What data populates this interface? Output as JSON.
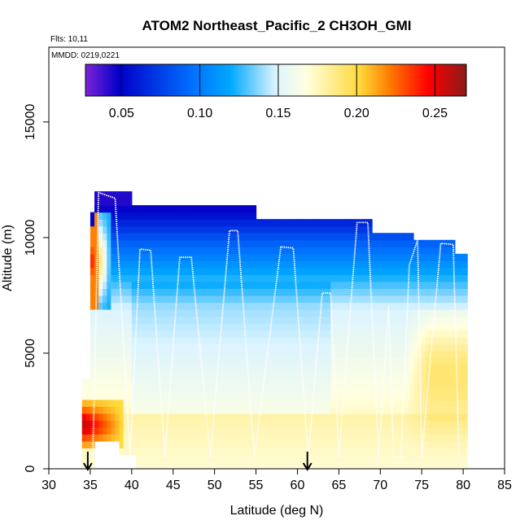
{
  "chart_data": {
    "type": "heatmap",
    "title": "ATOM2 Northeast_Pacific_2 CH3OH_GMI",
    "subtitle_flights": "Flts: 10,11",
    "subtitle_dates": "MMDD: 0219,0221",
    "xlabel": "Latitude (deg N)",
    "ylabel": "Altitude (m)",
    "xlim": [
      30,
      85
    ],
    "ylim": [
      0,
      17500
    ],
    "x_ticks": [
      30,
      35,
      40,
      45,
      50,
      55,
      60,
      65,
      70,
      75,
      80,
      85
    ],
    "y_ticks": [
      0,
      5000,
      10000,
      15000
    ],
    "colorbar": {
      "range": [
        0.027,
        0.27
      ],
      "ticks": [
        "0.05",
        "0.10",
        "0.15",
        "0.20",
        "0.25"
      ],
      "tick_values": [
        0.05,
        0.1,
        0.15,
        0.2,
        0.25
      ],
      "colors": [
        "#7b22d8",
        "#0000c8",
        "#00a8ff",
        "#dcf4ff",
        "#ffffe0",
        "#ffd93a",
        "#ff7a00",
        "#ff0000",
        "#8b1a1a"
      ]
    },
    "arrows_lat": [
      34.7,
      61.2
    ],
    "flight_track": [
      [
        35.3,
        500
      ],
      [
        36.0,
        11950
      ],
      [
        38.0,
        11700
      ],
      [
        39.8,
        500
      ],
      [
        41.0,
        9500
      ],
      [
        42.3,
        9450
      ],
      [
        44.0,
        500
      ],
      [
        45.8,
        9150
      ],
      [
        47.2,
        9150
      ],
      [
        49.5,
        500
      ],
      [
        51.8,
        10300
      ],
      [
        52.8,
        10300
      ],
      [
        54.8,
        500
      ],
      [
        58.0,
        9600
      ],
      [
        59.5,
        9550
      ],
      [
        61.3,
        500
      ],
      [
        63.0,
        7600
      ],
      [
        64.0,
        7600
      ],
      [
        65.0,
        500
      ],
      [
        67.2,
        10650
      ],
      [
        68.5,
        10650
      ],
      [
        69.8,
        500
      ],
      [
        71.0,
        7000
      ],
      [
        71.6,
        500
      ],
      [
        72.5,
        500
      ],
      [
        73.5,
        8800
      ],
      [
        74.5,
        9900
      ],
      [
        75.0,
        500
      ],
      [
        77.3,
        9750
      ],
      [
        78.8,
        9700
      ],
      [
        79.5,
        500
      ]
    ]
  }
}
